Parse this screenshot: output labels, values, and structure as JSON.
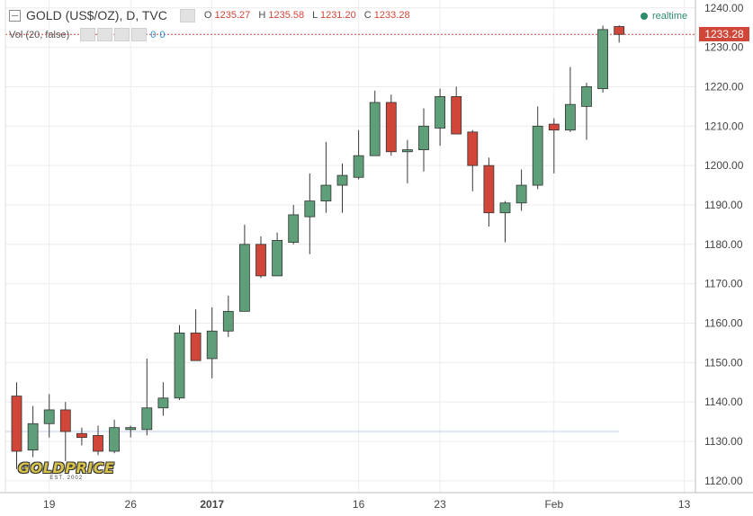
{
  "header": {
    "title": "GOLD (US$/OZ), D, TVC",
    "ohlc": [
      {
        "label": "O",
        "value": "1235.27"
      },
      {
        "label": "H",
        "value": "1235.58"
      },
      {
        "label": "L",
        "value": "1231.20"
      },
      {
        "label": "C",
        "value": "1233.28"
      }
    ],
    "volume_label": "Vol (20, false)",
    "volume_values": [
      "0",
      "0"
    ],
    "realtime_label": "realtime"
  },
  "logo": {
    "main": "GOLDPRICE",
    "sub": "EST. 2002"
  },
  "last_price_label": "1233.28",
  "colors": {
    "up": "#5e9e78",
    "down": "#d0473a",
    "grid": "#ececec",
    "axis_text": "#444444",
    "price_line": "#d0473a",
    "flat_line": "#a9c1de"
  },
  "chart_data": {
    "type": "candlestick",
    "y_ticks": [
      "1120.00",
      "1130.00",
      "1140.00",
      "1150.00",
      "1160.00",
      "1170.00",
      "1180.00",
      "1190.00",
      "1200.00",
      "1210.00",
      "1220.00",
      "1230.00",
      "1240.00"
    ],
    "ylim": [
      1117,
      1242
    ],
    "x_tick_labels": [
      {
        "label": "19",
        "index": 2
      },
      {
        "label": "26",
        "index": 7
      },
      {
        "label": "2017",
        "index": 12
      },
      {
        "label": "16",
        "index": 21
      },
      {
        "label": "23",
        "index": 26
      },
      {
        "label": "Feb",
        "index": 33
      },
      {
        "label": "13",
        "index": 41
      }
    ],
    "last_price": 1233.28,
    "candles": [
      {
        "o": 1141.5,
        "h": 1145.0,
        "l": 1123.0,
        "c": 1127.5
      },
      {
        "o": 1127.8,
        "h": 1139.0,
        "l": 1126.0,
        "c": 1134.5
      },
      {
        "o": 1134.5,
        "h": 1142.0,
        "l": 1131.0,
        "c": 1138.0
      },
      {
        "o": 1138.0,
        "h": 1140.0,
        "l": 1125.0,
        "c": 1132.5
      },
      {
        "o": 1132.0,
        "h": 1133.5,
        "l": 1129.0,
        "c": 1131.0
      },
      {
        "o": 1131.5,
        "h": 1134.0,
        "l": 1126.5,
        "c": 1127.5
      },
      {
        "o": 1127.5,
        "h": 1135.5,
        "l": 1127.0,
        "c": 1133.5
      },
      {
        "o": 1133.0,
        "h": 1134.0,
        "l": 1131.0,
        "c": 1133.5
      },
      {
        "o": 1133.0,
        "h": 1151.0,
        "l": 1131.5,
        "c": 1138.5
      },
      {
        "o": 1138.5,
        "h": 1145.0,
        "l": 1136.5,
        "c": 1141.0
      },
      {
        "o": 1141.0,
        "h": 1159.5,
        "l": 1140.5,
        "c": 1157.5
      },
      {
        "o": 1157.5,
        "h": 1163.5,
        "l": 1150.5,
        "c": 1150.5
      },
      {
        "o": 1151.0,
        "h": 1164.0,
        "l": 1146.0,
        "c": 1158.0
      },
      {
        "o": 1158.0,
        "h": 1167.0,
        "l": 1156.5,
        "c": 1163.0
      },
      {
        "o": 1163.0,
        "h": 1185.0,
        "l": 1163.0,
        "c": 1180.0
      },
      {
        "o": 1180.0,
        "h": 1182.0,
        "l": 1171.5,
        "c": 1172.0
      },
      {
        "o": 1172.0,
        "h": 1183.0,
        "l": 1172.0,
        "c": 1181.0
      },
      {
        "o": 1180.5,
        "h": 1190.0,
        "l": 1180.0,
        "c": 1187.5
      },
      {
        "o": 1187.0,
        "h": 1198.0,
        "l": 1177.5,
        "c": 1191.0
      },
      {
        "o": 1191.0,
        "h": 1206.0,
        "l": 1188.0,
        "c": 1195.0
      },
      {
        "o": 1195.0,
        "h": 1200.5,
        "l": 1188.0,
        "c": 1197.5
      },
      {
        "o": 1197.0,
        "h": 1209.0,
        "l": 1196.5,
        "c": 1202.5
      },
      {
        "o": 1202.5,
        "h": 1219.0,
        "l": 1202.5,
        "c": 1216.0
      },
      {
        "o": 1216.0,
        "h": 1218.0,
        "l": 1202.5,
        "c": 1203.5
      },
      {
        "o": 1203.5,
        "h": 1206.5,
        "l": 1195.5,
        "c": 1204.0
      },
      {
        "o": 1204.0,
        "h": 1214.5,
        "l": 1198.5,
        "c": 1210.0
      },
      {
        "o": 1209.5,
        "h": 1219.5,
        "l": 1205.0,
        "c": 1217.5
      },
      {
        "o": 1217.5,
        "h": 1220.0,
        "l": 1208.0,
        "c": 1208.0
      },
      {
        "o": 1208.5,
        "h": 1209.0,
        "l": 1193.5,
        "c": 1200.0
      },
      {
        "o": 1200.0,
        "h": 1202.0,
        "l": 1184.5,
        "c": 1188.0
      },
      {
        "o": 1188.0,
        "h": 1191.0,
        "l": 1180.5,
        "c": 1190.5
      },
      {
        "o": 1190.5,
        "h": 1199.0,
        "l": 1188.5,
        "c": 1195.0
      },
      {
        "o": 1195.0,
        "h": 1215.0,
        "l": 1194.0,
        "c": 1210.0
      },
      {
        "o": 1210.5,
        "h": 1212.0,
        "l": 1198.0,
        "c": 1209.0
      },
      {
        "o": 1209.0,
        "h": 1225.0,
        "l": 1208.5,
        "c": 1215.5
      },
      {
        "o": 1215.0,
        "h": 1221.0,
        "l": 1206.5,
        "c": 1220.0
      },
      {
        "o": 1219.5,
        "h": 1235.5,
        "l": 1218.5,
        "c": 1234.5
      },
      {
        "o": 1235.27,
        "h": 1235.58,
        "l": 1231.2,
        "c": 1233.28
      }
    ]
  }
}
